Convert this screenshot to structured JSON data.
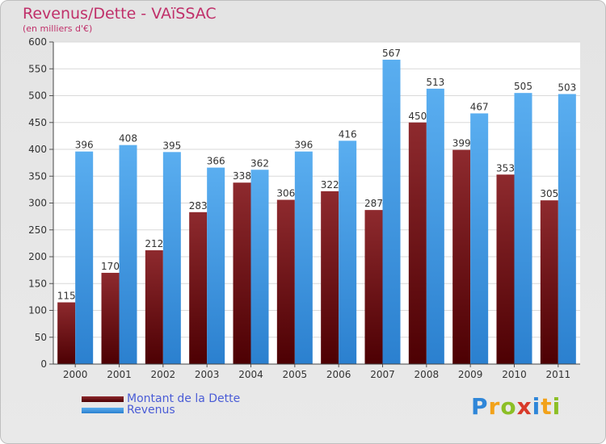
{
  "chart_data": {
    "type": "bar",
    "title": "Revenus/Dette - VAïSSAC",
    "subtitle": "(en milliers d'€)",
    "categories": [
      "2000",
      "2001",
      "2002",
      "2003",
      "2004",
      "2005",
      "2006",
      "2007",
      "2008",
      "2009",
      "2010",
      "2011"
    ],
    "series": [
      {
        "name": "Montant de la Dette",
        "color": "#7a1015",
        "values": [
          115,
          170,
          212,
          283,
          338,
          306,
          322,
          287,
          450,
          399,
          353,
          305
        ]
      },
      {
        "name": "Revenus",
        "color": "#3d97e6",
        "values": [
          396,
          408,
          395,
          366,
          362,
          396,
          416,
          567,
          513,
          467,
          505,
          503
        ]
      }
    ],
    "ylim": [
      0,
      600
    ],
    "yticks": [
      0,
      50,
      100,
      150,
      200,
      250,
      300,
      350,
      400,
      450,
      500,
      550,
      600
    ],
    "grid": true,
    "legend_position": "bottom-left"
  },
  "logo": {
    "letters": [
      "P",
      "r",
      "o",
      "x",
      "i",
      "t",
      "i"
    ],
    "colors": [
      "#2f86d8",
      "#f2a21a",
      "#8cbf26",
      "#d83a2a",
      "#2f86d8",
      "#f2a21a",
      "#8cbf26"
    ]
  }
}
